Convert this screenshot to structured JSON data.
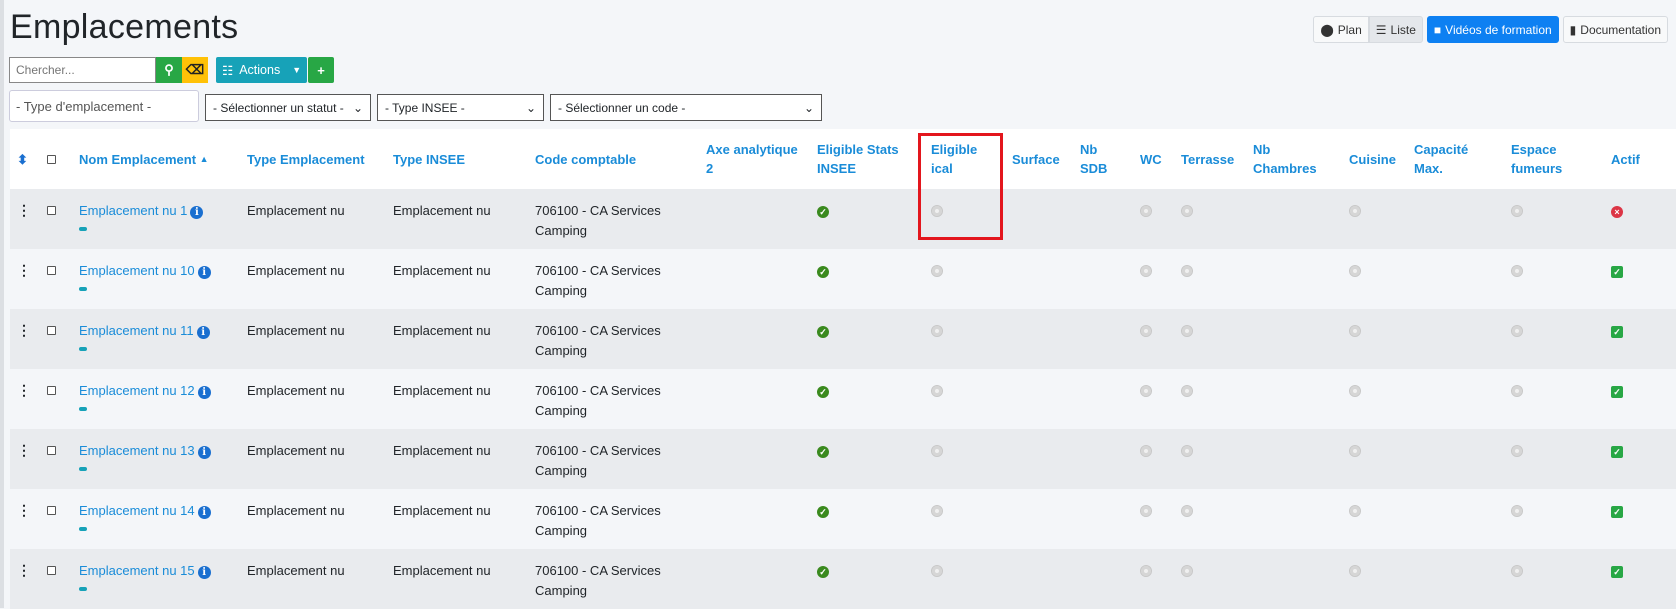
{
  "page": {
    "title": "Emplacements"
  },
  "toolbar": {
    "plan": "Plan",
    "liste": "Liste",
    "videos": "Vidéos de formation",
    "doc": "Documentation",
    "search_placeholder": "Chercher...",
    "actions": "Actions"
  },
  "filters": {
    "type_placeholder": "- Type d'emplacement -",
    "statut": "- Sélectionner un statut -",
    "insee": "- Type INSEE -",
    "code": "- Sélectionner un code -"
  },
  "colors": {
    "accent": "#1a8cd8",
    "primary": "#0d80f2",
    "highlight": "#e3161d"
  },
  "table": {
    "headers": [
      "",
      "",
      "Nom Emplacement",
      "Type Emplacement",
      "Type INSEE",
      "Code comptable",
      "Axe analytique 2",
      "Eligible Stats INSEE",
      "Eligible ical",
      "Surface",
      "Nb SDB",
      "WC",
      "Terrasse",
      "Nb Chambres",
      "Cuisine",
      "Capacité Max.",
      "Espace fumeurs",
      "Actif"
    ],
    "sorted_column": "Nom Emplacement",
    "sort_direction": "asc",
    "highlighted_column": "Eligible ical",
    "rows": [
      {
        "name": "Emplacement nu 1",
        "type": "Emplacement nu",
        "insee": "Emplacement nu",
        "code": "706100 - CA Services Camping",
        "stats_insee": true,
        "ical": false,
        "wc": false,
        "terrasse": false,
        "cuisine": false,
        "fumeurs": false,
        "actif": false
      },
      {
        "name": "Emplacement nu 10",
        "type": "Emplacement nu",
        "insee": "Emplacement nu",
        "code": "706100 - CA Services Camping",
        "stats_insee": true,
        "ical": false,
        "wc": false,
        "terrasse": false,
        "cuisine": false,
        "fumeurs": false,
        "actif": true
      },
      {
        "name": "Emplacement nu 11",
        "type": "Emplacement nu",
        "insee": "Emplacement nu",
        "code": "706100 - CA Services Camping",
        "stats_insee": true,
        "ical": false,
        "wc": false,
        "terrasse": false,
        "cuisine": false,
        "fumeurs": false,
        "actif": true
      },
      {
        "name": "Emplacement nu 12",
        "type": "Emplacement nu",
        "insee": "Emplacement nu",
        "code": "706100 - CA Services Camping",
        "stats_insee": true,
        "ical": false,
        "wc": false,
        "terrasse": false,
        "cuisine": false,
        "fumeurs": false,
        "actif": true
      },
      {
        "name": "Emplacement nu 13",
        "type": "Emplacement nu",
        "insee": "Emplacement nu",
        "code": "706100 - CA Services Camping",
        "stats_insee": true,
        "ical": false,
        "wc": false,
        "terrasse": false,
        "cuisine": false,
        "fumeurs": false,
        "actif": true
      },
      {
        "name": "Emplacement nu 14",
        "type": "Emplacement nu",
        "insee": "Emplacement nu",
        "code": "706100 - CA Services Camping",
        "stats_insee": true,
        "ical": false,
        "wc": false,
        "terrasse": false,
        "cuisine": false,
        "fumeurs": false,
        "actif": true
      },
      {
        "name": "Emplacement nu 15",
        "type": "Emplacement nu",
        "insee": "Emplacement nu",
        "code": "706100 - CA Services Camping",
        "stats_insee": true,
        "ical": false,
        "wc": false,
        "terrasse": false,
        "cuisine": false,
        "fumeurs": false,
        "actif": true
      }
    ]
  }
}
